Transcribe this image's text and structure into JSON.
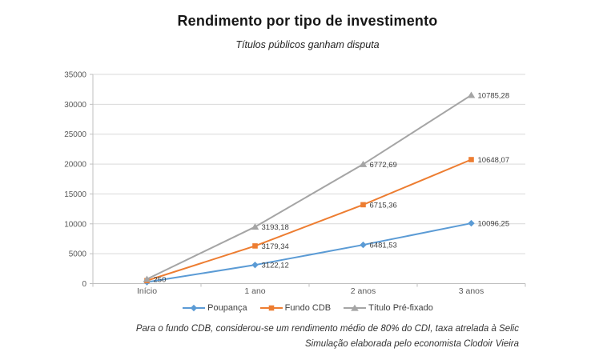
{
  "header": {
    "title": "Rendimento por tipo de investimento",
    "subtitle": "Títulos públicos ganham disputa"
  },
  "footnotes": {
    "line1": "Para o fundo CDB, considerou-se um rendimento médio de 80% do CDI, taxa atrelada à Selic",
    "line2": "Simulação elaborada pelo economista Clodoir Vieira"
  },
  "chart_data": {
    "type": "line",
    "stacked": true,
    "title": "Rendimento por tipo de investimento",
    "subtitle": "Títulos públicos ganham disputa",
    "categories": [
      "Início",
      "1 ano",
      "2 anos",
      "3 anos"
    ],
    "series": [
      {
        "name": "Poupança",
        "color": "#5B9BD5",
        "marker": "diamond",
        "values": [
          250,
          3122.12,
          6481.53,
          10096.25
        ],
        "point_labels": [
          "",
          "3122,12",
          "6481,53",
          "10096,25"
        ]
      },
      {
        "name": "Fundo CDB",
        "color": "#ED7D31",
        "marker": "square",
        "values": [
          250,
          3179.34,
          6715.36,
          10648.07
        ],
        "point_labels": [
          "",
          "3179,34",
          "6715,36",
          "10648,07"
        ]
      },
      {
        "name": "Título Pré-fixado",
        "color": "#A5A5A5",
        "marker": "triangle",
        "values": [
          250,
          3193.18,
          6772.69,
          10785.28
        ],
        "point_labels": [
          "250",
          "3193,18",
          "6772,69",
          "10785,28"
        ]
      }
    ],
    "ylim": [
      0,
      35000
    ],
    "yticks": [
      0,
      5000,
      10000,
      15000,
      20000,
      25000,
      30000,
      35000
    ],
    "grid": true,
    "legend_position": "bottom",
    "colors": {
      "grid": "#D9D9D9",
      "axis": "#BFBFBF",
      "tick_text": "#595959",
      "data_label": "#404040"
    }
  }
}
